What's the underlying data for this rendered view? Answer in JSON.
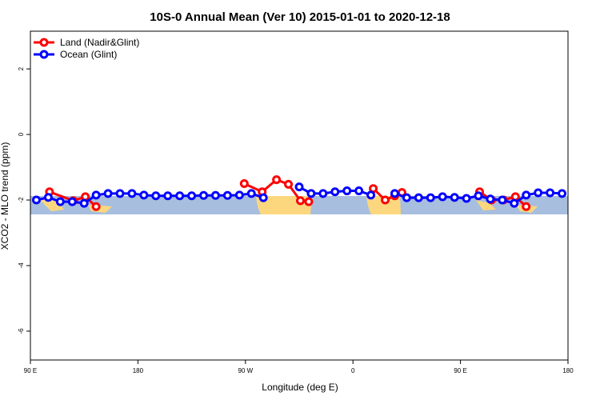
{
  "chart_data": {
    "type": "line",
    "title": "10S-0 Annual Mean (Ver 10)   2015-01-01 to 2020-12-18",
    "xlabel": "Longitude (deg E)",
    "ylabel": "XCO2 - MLO trend (ppm)",
    "xlim": [
      90,
      540
    ],
    "xticks": [
      {
        "value": 90,
        "label": "90 E"
      },
      180,
      {
        "value": 270,
        "label": "90 W"
      },
      {
        "value": 360,
        "label": "0"
      },
      {
        "value": 450,
        "label": "90 E"
      },
      {
        "value": 540,
        "label": "180"
      }
    ],
    "ylim": [
      -6.88,
      3.15
    ],
    "yticks": [
      2,
      0,
      -2,
      -4,
      -6
    ],
    "legend": "top-left",
    "series": [
      {
        "name": "Land (Nadir&Glint)",
        "color": "#ff0000",
        "x": [
          106,
          126,
          136,
          145,
          null,
          269,
          284,
          296,
          306,
          316,
          323,
          null,
          377,
          387,
          395,
          401,
          null,
          466,
          476,
          486,
          496,
          505
        ],
        "values": [
          -1.75,
          -2.02,
          -1.9,
          -2.2,
          null,
          -1.5,
          -1.75,
          -1.38,
          -1.52,
          -2.02,
          -2.05,
          null,
          -1.65,
          -2.0,
          -1.87,
          -1.77,
          null,
          -1.75,
          -2.0,
          -2.0,
          -1.9,
          -2.2
        ]
      },
      {
        "name": "Ocean (Glint)",
        "color": "#0000ff",
        "x": [
          95,
          105,
          115,
          125,
          135,
          145,
          155,
          165,
          175,
          185,
          195,
          205,
          215,
          225,
          235,
          245,
          255,
          265,
          275,
          285,
          295,
          305,
          315,
          325,
          335,
          345,
          355,
          365,
          375,
          385,
          395,
          405,
          415,
          425,
          435,
          445,
          455,
          465,
          475,
          485,
          495,
          505,
          515,
          525,
          535
        ],
        "values": [
          -2.0,
          -1.92,
          -2.05,
          -2.05,
          -2.1,
          -1.85,
          -1.8,
          -1.8,
          -1.8,
          -1.85,
          -1.87,
          -1.87,
          -1.87,
          -1.87,
          -1.86,
          -1.86,
          -1.86,
          -1.85,
          -1.8,
          -1.93,
          null,
          null,
          -1.6,
          -1.8,
          -1.8,
          -1.75,
          -1.72,
          -1.72,
          -1.85,
          null,
          -1.8,
          -1.93,
          -1.93,
          -1.93,
          -1.9,
          -1.92,
          -1.95,
          -1.87,
          -1.97,
          -2.0,
          -2.1,
          -1.85,
          -1.78,
          -1.78,
          -1.8
        ]
      }
    ]
  }
}
